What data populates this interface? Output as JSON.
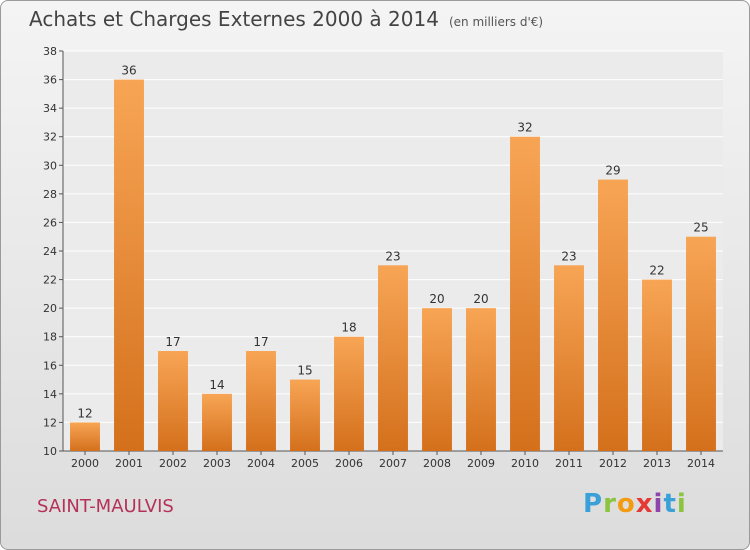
{
  "header": {
    "title": "Achats et Charges Externes 2000 à 2014",
    "subtitle": "(en milliers d'€)"
  },
  "footer": {
    "location": "SAINT-MAULVIS",
    "logo_letters": [
      "P",
      "r",
      "o",
      "x",
      "i",
      "t",
      "i"
    ],
    "logo_colors": [
      "#3aa0d8",
      "#8bc43f",
      "#f39c12",
      "#e53935",
      "#8e44ad",
      "#3aa0d8",
      "#8bc43f"
    ]
  },
  "chart_data": {
    "type": "bar",
    "title": "Achats et Charges Externes 2000 à 2014",
    "subtitle": "(en milliers d'€)",
    "categories": [
      "2000",
      "2001",
      "2002",
      "2003",
      "2004",
      "2005",
      "2006",
      "2007",
      "2008",
      "2009",
      "2010",
      "2011",
      "2012",
      "2013",
      "2014"
    ],
    "values": [
      12,
      36,
      17,
      14,
      17,
      15,
      18,
      23,
      20,
      20,
      32,
      23,
      29,
      22,
      25
    ],
    "ylim": [
      10,
      38
    ],
    "yticks": [
      10,
      12,
      14,
      16,
      18,
      20,
      22,
      24,
      26,
      28,
      30,
      32,
      34,
      36,
      38
    ],
    "grid": true,
    "bar_color_top": "#f7a555",
    "bar_color_bottom": "#d4701c"
  }
}
